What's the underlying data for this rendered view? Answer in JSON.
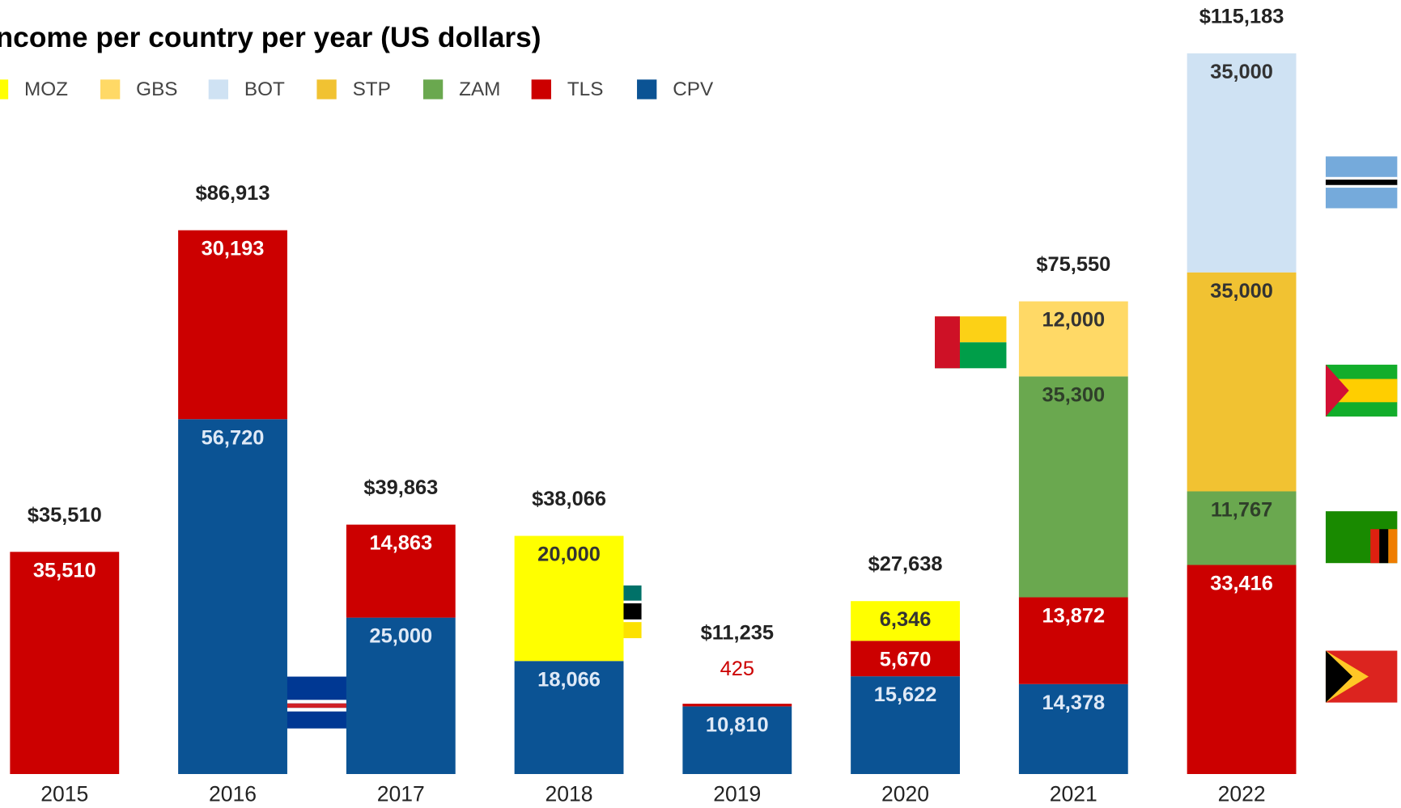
{
  "chart_data": {
    "type": "stacked_bar",
    "title": "Income per country per year (US dollars)",
    "categories": [
      "2015",
      "2016",
      "2017",
      "2018",
      "2019",
      "2020",
      "2021",
      "2022"
    ],
    "legend_order": [
      "MOZ",
      "GBS",
      "BOT",
      "STP",
      "ZAM",
      "TLS",
      "CPV"
    ],
    "series": [
      {
        "name": "CPV",
        "color": "#0b5394",
        "label_color": "#dfe9f6",
        "values": [
          null,
          56720,
          25000,
          18066,
          10810,
          15622,
          14378,
          null
        ],
        "value_labels": [
          null,
          "56,720",
          "25,000",
          "18,066",
          "10,810",
          "15,622",
          "14,378",
          null
        ]
      },
      {
        "name": "TLS",
        "color": "#cc0000",
        "label_color": "#ffffff",
        "values": [
          35510,
          30193,
          14863,
          null,
          425,
          5670,
          13872,
          33416
        ],
        "value_labels": [
          "35,510",
          "30,193",
          "14,863",
          null,
          "425",
          "5,670",
          "13,872",
          "33,416"
        ]
      },
      {
        "name": "ZAM",
        "color": "#6aa84f",
        "label_color": "#2f3f2a",
        "values": [
          null,
          null,
          null,
          null,
          null,
          null,
          35300,
          11767
        ],
        "value_labels": [
          null,
          null,
          null,
          null,
          null,
          null,
          "35,300",
          "11,767"
        ]
      },
      {
        "name": "STP",
        "color": "#f1c232",
        "label_color": "#333333",
        "values": [
          null,
          null,
          null,
          null,
          null,
          null,
          null,
          35000
        ],
        "value_labels": [
          null,
          null,
          null,
          null,
          null,
          null,
          null,
          "35,000"
        ]
      },
      {
        "name": "BOT",
        "color": "#cfe2f3",
        "label_color": "#333333",
        "values": [
          null,
          null,
          null,
          null,
          null,
          null,
          null,
          35000
        ],
        "value_labels": [
          null,
          null,
          null,
          null,
          null,
          null,
          null,
          "35,000"
        ]
      },
      {
        "name": "GBS",
        "color": "#ffd966",
        "label_color": "#333333",
        "values": [
          null,
          null,
          null,
          null,
          null,
          null,
          12000,
          null
        ],
        "value_labels": [
          null,
          null,
          null,
          null,
          null,
          null,
          "12,000",
          null
        ]
      },
      {
        "name": "MOZ",
        "color": "#ffff00",
        "label_color": "#333333",
        "values": [
          null,
          null,
          null,
          20000,
          null,
          6346,
          null,
          null
        ],
        "value_labels": [
          null,
          null,
          null,
          "20,000",
          null,
          "6,346",
          null,
          null
        ]
      }
    ],
    "totals": [
      35510,
      86913,
      39863,
      38066,
      11235,
      27638,
      75550,
      115183
    ],
    "total_labels": [
      "$35,510",
      "$86,913",
      "$39,863",
      "$38,066",
      "$11,235",
      "$27,638",
      "$75,550",
      "$115,183"
    ],
    "ylim": [
      0,
      120000
    ]
  }
}
